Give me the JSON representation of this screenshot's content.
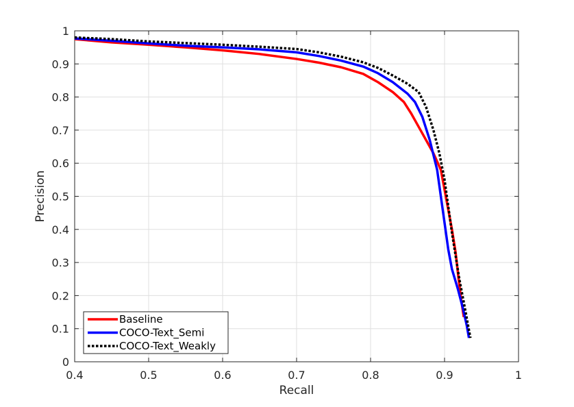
{
  "chart_data": {
    "type": "line",
    "title": "",
    "xlabel": "Recall",
    "ylabel": "Precision",
    "xlim": [
      0.4,
      1.0
    ],
    "ylim": [
      0,
      1.0
    ],
    "xticks": [
      "0.4",
      "0.5",
      "0.6",
      "0.7",
      "0.8",
      "0.9",
      "1"
    ],
    "yticks": [
      "0",
      "0.1",
      "0.2",
      "0.3",
      "0.4",
      "0.5",
      "0.6",
      "0.7",
      "0.8",
      "0.9",
      "1"
    ],
    "grid": true,
    "legend_position": "bottom-left",
    "series": [
      {
        "name": "Baseline",
        "color": "#ff0000",
        "style": "solid",
        "points": [
          [
            0.4,
            0.975
          ],
          [
            0.45,
            0.965
          ],
          [
            0.5,
            0.958
          ],
          [
            0.55,
            0.95
          ],
          [
            0.6,
            0.941
          ],
          [
            0.65,
            0.93
          ],
          [
            0.7,
            0.915
          ],
          [
            0.73,
            0.904
          ],
          [
            0.76,
            0.89
          ],
          [
            0.79,
            0.87
          ],
          [
            0.81,
            0.845
          ],
          [
            0.83,
            0.815
          ],
          [
            0.845,
            0.785
          ],
          [
            0.855,
            0.75
          ],
          [
            0.865,
            0.71
          ],
          [
            0.875,
            0.67
          ],
          [
            0.885,
            0.63
          ],
          [
            0.895,
            0.58
          ],
          [
            0.9,
            0.52
          ],
          [
            0.905,
            0.46
          ],
          [
            0.91,
            0.4
          ],
          [
            0.915,
            0.33
          ],
          [
            0.919,
            0.25
          ],
          [
            0.923,
            0.18
          ],
          [
            0.926,
            0.135
          ]
        ]
      },
      {
        "name": "COCO-Text_Semi",
        "color": "#0000ff",
        "style": "solid",
        "points": [
          [
            0.4,
            0.977
          ],
          [
            0.45,
            0.97
          ],
          [
            0.5,
            0.962
          ],
          [
            0.55,
            0.955
          ],
          [
            0.6,
            0.95
          ],
          [
            0.65,
            0.944
          ],
          [
            0.7,
            0.935
          ],
          [
            0.73,
            0.924
          ],
          [
            0.76,
            0.91
          ],
          [
            0.79,
            0.892
          ],
          [
            0.81,
            0.872
          ],
          [
            0.83,
            0.845
          ],
          [
            0.85,
            0.81
          ],
          [
            0.86,
            0.785
          ],
          [
            0.87,
            0.74
          ],
          [
            0.88,
            0.67
          ],
          [
            0.89,
            0.58
          ],
          [
            0.895,
            0.5
          ],
          [
            0.9,
            0.42
          ],
          [
            0.905,
            0.34
          ],
          [
            0.91,
            0.28
          ],
          [
            0.918,
            0.22
          ],
          [
            0.925,
            0.16
          ],
          [
            0.93,
            0.11
          ],
          [
            0.933,
            0.072
          ]
        ]
      },
      {
        "name": "COCO-Text_Weakly",
        "color": "#000000",
        "style": "dotted",
        "points": [
          [
            0.4,
            0.98
          ],
          [
            0.45,
            0.975
          ],
          [
            0.5,
            0.968
          ],
          [
            0.55,
            0.963
          ],
          [
            0.6,
            0.958
          ],
          [
            0.65,
            0.952
          ],
          [
            0.7,
            0.945
          ],
          [
            0.73,
            0.935
          ],
          [
            0.76,
            0.922
          ],
          [
            0.79,
            0.905
          ],
          [
            0.81,
            0.888
          ],
          [
            0.83,
            0.865
          ],
          [
            0.85,
            0.84
          ],
          [
            0.865,
            0.815
          ],
          [
            0.875,
            0.77
          ],
          [
            0.885,
            0.7
          ],
          [
            0.893,
            0.63
          ],
          [
            0.9,
            0.55
          ],
          [
            0.905,
            0.47
          ],
          [
            0.91,
            0.39
          ],
          [
            0.915,
            0.32
          ],
          [
            0.92,
            0.25
          ],
          [
            0.926,
            0.18
          ],
          [
            0.931,
            0.12
          ],
          [
            0.935,
            0.072
          ]
        ]
      }
    ]
  }
}
